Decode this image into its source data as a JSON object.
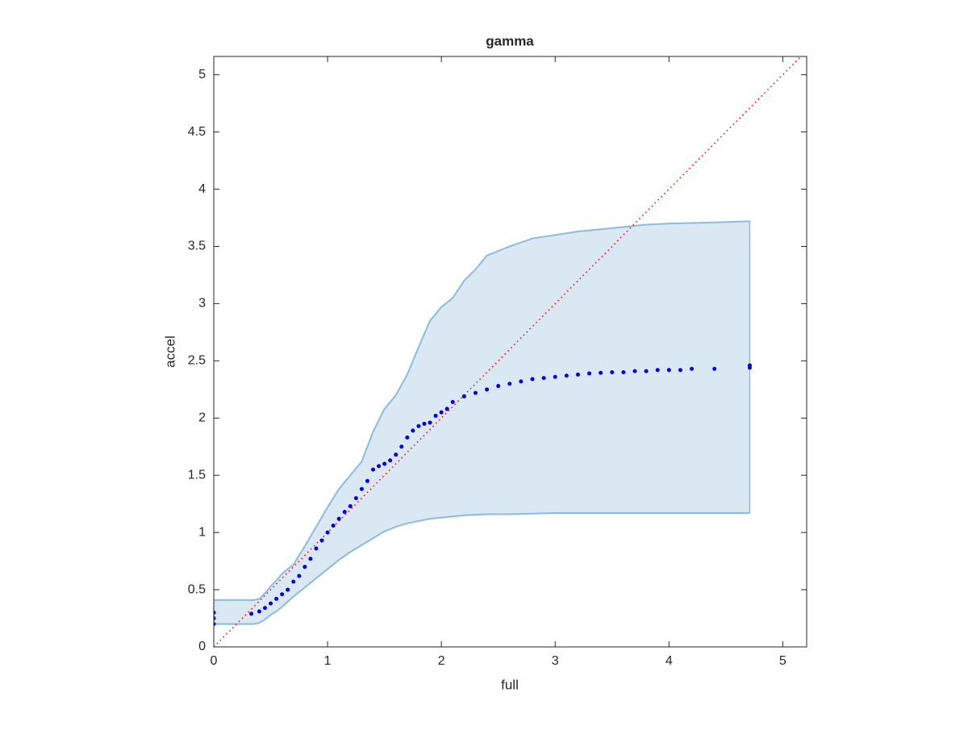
{
  "chart_data": {
    "type": "scatter",
    "title": "gamma",
    "xlabel": "full",
    "ylabel": "accel",
    "xlim": [
      0,
      5.21
    ],
    "ylim": [
      0,
      5.16
    ],
    "xticks": [
      0,
      1,
      2,
      3,
      4,
      5
    ],
    "yticks": [
      0,
      0.5,
      1,
      1.5,
      2,
      2.5,
      3,
      3.5,
      4,
      4.5,
      5
    ],
    "band": {
      "fill": "#dae8f4",
      "color": "#8cbcdc",
      "x": [
        0,
        0.35,
        0.4,
        0.45,
        0.5,
        0.55,
        0.6,
        0.7,
        0.8,
        0.9,
        1.0,
        1.1,
        1.2,
        1.3,
        1.4,
        1.5,
        1.6,
        1.7,
        1.8,
        1.9,
        2.0,
        2.1,
        2.2,
        2.3,
        2.4,
        2.6,
        2.8,
        3.0,
        3.2,
        3.4,
        3.6,
        3.8,
        4.0,
        4.4,
        4.71
      ],
      "upper": [
        0.41,
        0.41,
        0.42,
        0.47,
        0.53,
        0.58,
        0.64,
        0.72,
        0.88,
        1.05,
        1.22,
        1.38,
        1.5,
        1.62,
        1.88,
        2.08,
        2.2,
        2.38,
        2.62,
        2.85,
        2.97,
        3.05,
        3.2,
        3.3,
        3.42,
        3.5,
        3.57,
        3.6,
        3.63,
        3.65,
        3.67,
        3.69,
        3.7,
        3.71,
        3.72
      ],
      "lower": [
        0.2,
        0.2,
        0.21,
        0.24,
        0.28,
        0.31,
        0.35,
        0.44,
        0.52,
        0.6,
        0.68,
        0.76,
        0.83,
        0.89,
        0.95,
        1.01,
        1.05,
        1.08,
        1.1,
        1.12,
        1.13,
        1.14,
        1.15,
        1.155,
        1.16,
        1.16,
        1.165,
        1.17,
        1.17,
        1.17,
        1.17,
        1.17,
        1.17,
        1.17,
        1.17
      ]
    },
    "points": {
      "color": "#0000e6",
      "x": [
        0,
        0,
        0,
        0.33,
        0.4,
        0.45,
        0.5,
        0.55,
        0.6,
        0.65,
        0.7,
        0.75,
        0.8,
        0.85,
        0.9,
        0.95,
        1.0,
        1.05,
        1.1,
        1.15,
        1.2,
        1.25,
        1.3,
        1.35,
        1.4,
        1.45,
        1.5,
        1.55,
        1.6,
        1.65,
        1.7,
        1.75,
        1.8,
        1.85,
        1.9,
        1.95,
        2.0,
        2.05,
        2.1,
        2.2,
        2.3,
        2.4,
        2.5,
        2.6,
        2.7,
        2.8,
        2.9,
        3.0,
        3.1,
        3.2,
        3.3,
        3.4,
        3.5,
        3.6,
        3.7,
        3.8,
        3.9,
        4.0,
        4.1,
        4.2,
        4.4,
        4.71,
        4.71
      ],
      "y": [
        0.2,
        0.25,
        0.3,
        0.29,
        0.31,
        0.34,
        0.38,
        0.42,
        0.46,
        0.5,
        0.57,
        0.62,
        0.7,
        0.77,
        0.86,
        0.93,
        1.0,
        1.06,
        1.12,
        1.18,
        1.23,
        1.3,
        1.38,
        1.45,
        1.55,
        1.58,
        1.6,
        1.63,
        1.68,
        1.75,
        1.83,
        1.89,
        1.93,
        1.95,
        1.96,
        2.02,
        2.05,
        2.08,
        2.14,
        2.19,
        2.22,
        2.25,
        2.28,
        2.3,
        2.32,
        2.34,
        2.35,
        2.36,
        2.37,
        2.38,
        2.39,
        2.395,
        2.4,
        2.4,
        2.41,
        2.41,
        2.42,
        2.42,
        2.42,
        2.43,
        2.43,
        2.44,
        2.46
      ]
    },
    "reference": {
      "color": "#ff0000",
      "x": [
        0,
        5.16
      ],
      "y": [
        0,
        5.16
      ]
    }
  }
}
